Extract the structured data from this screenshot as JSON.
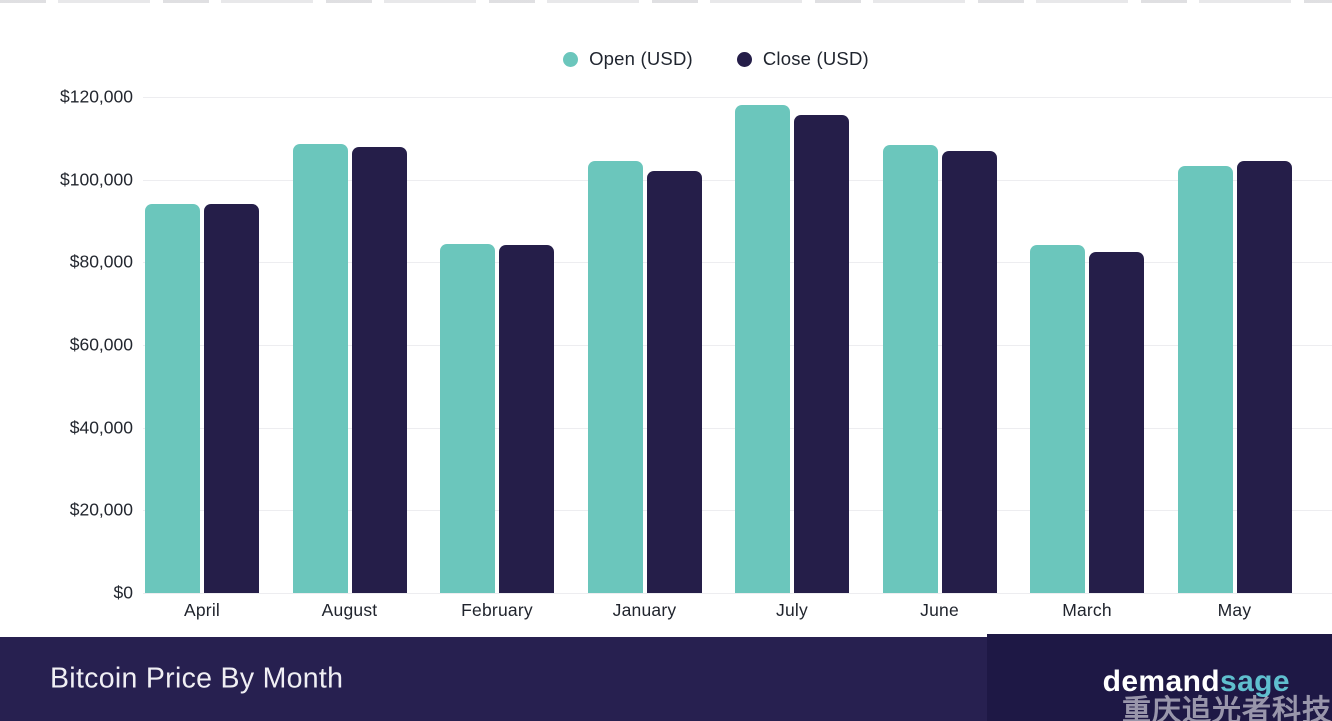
{
  "legend": {
    "items": [
      {
        "label": "Open (USD)",
        "color": "#6BC6BC"
      },
      {
        "label": "Close (USD)",
        "color": "#251E49"
      }
    ]
  },
  "chart_data": {
    "type": "bar",
    "title": "Bitcoin Price By Month",
    "categories": [
      "April",
      "August",
      "February",
      "January",
      "July",
      "June",
      "March",
      "May"
    ],
    "series": [
      {
        "name": "Open (USD)",
        "color": "#6BC6BC",
        "values": [
          94000,
          108600,
          84500,
          104600,
          118000,
          108300,
          84300,
          103400
        ]
      },
      {
        "name": "Close (USD)",
        "color": "#251E49",
        "values": [
          94000,
          107900,
          84200,
          102200,
          115600,
          107000,
          82400,
          104500
        ]
      }
    ],
    "xlabel": "",
    "ylabel": "",
    "ylim": [
      0,
      120000
    ],
    "y_ticks": [
      {
        "value": 0,
        "label": "$0"
      },
      {
        "value": 20000,
        "label": "$20,000"
      },
      {
        "value": 40000,
        "label": "$40,000"
      },
      {
        "value": 60000,
        "label": "$60,000"
      },
      {
        "value": 80000,
        "label": "$80,000"
      },
      {
        "value": 100000,
        "label": "$100,000"
      },
      {
        "value": 120000,
        "label": "$120,000"
      }
    ],
    "grid": true,
    "legend_position": "top-center"
  },
  "footer": {
    "title": "Bitcoin Price By Month",
    "brand": {
      "prefix": "demand",
      "suffix": "sage"
    },
    "watermark": "重庆追光者科技"
  },
  "colors": {
    "background": "#FFFFFF",
    "gridline": "#EDEDF0",
    "axis_text": "#23272F",
    "banner": "#272050",
    "brand_box": "#1E1845",
    "banner_text": "#F0EFF4",
    "brand_prefix": "#FFFFFF",
    "brand_suffix": "#5FBFCE",
    "open_bar": "#6BC6BC",
    "close_bar": "#251E49"
  }
}
